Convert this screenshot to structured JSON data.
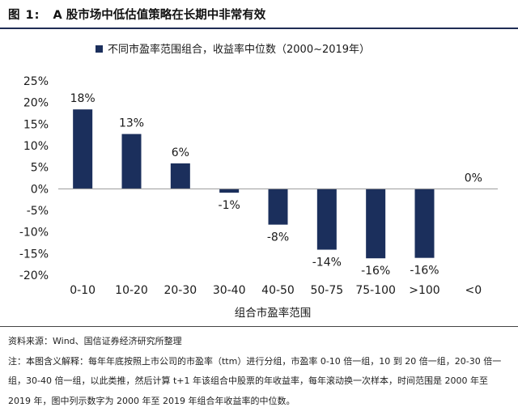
{
  "figure": {
    "number": "图 1:",
    "title": "A 股市场中低估值策略在长期中非常有效"
  },
  "chart_data": {
    "type": "bar",
    "categories": [
      "0-10",
      "10-20",
      "20-30",
      "30-40",
      "40-50",
      "50-75",
      "75-100",
      ">100",
      "<0"
    ],
    "series": [
      {
        "name": "不同市盈率范围组合，收益率中位数（2000~2019年）",
        "values": [
          18.4,
          12.7,
          5.9,
          -0.9,
          -8.3,
          -14.1,
          -16.1,
          -16.0,
          0.0
        ],
        "data_labels": [
          "18%",
          "13%",
          "6%",
          "-1%",
          "-8%",
          "-14%",
          "-16%",
          "-16%",
          "0%"
        ],
        "color": "#1b2f5c"
      }
    ],
    "xlabel": "组合市盈率范围",
    "ylabel": "",
    "ylim": [
      -20,
      25
    ],
    "yticks": [
      -20,
      -15,
      -10,
      -5,
      0,
      5,
      10,
      15,
      20,
      25
    ],
    "ytick_labels": [
      "-20%",
      "-15%",
      "-10%",
      "-5%",
      "0%",
      "5%",
      "10%",
      "15%",
      "20%",
      "25%"
    ],
    "grid": false,
    "legend_position": "top-center"
  },
  "notes": {
    "source": "资料来源：Wind、国信证券经济研究所整理",
    "explanation": "注：本图含义解释：每年年底按照上市公司的市盈率（ttm）进行分组，市盈率 0-10 倍一组，10 到 20 倍一组，20-30 倍一组，30-40 倍一组，以此类推，然后计算 t+1 年该组合中股票的年收益率，每年滚动换一次样本，时间范围是 2000 年至 2019 年，图中列示数字为 2000 年至 2019 年组合年收益率的中位数。"
  }
}
